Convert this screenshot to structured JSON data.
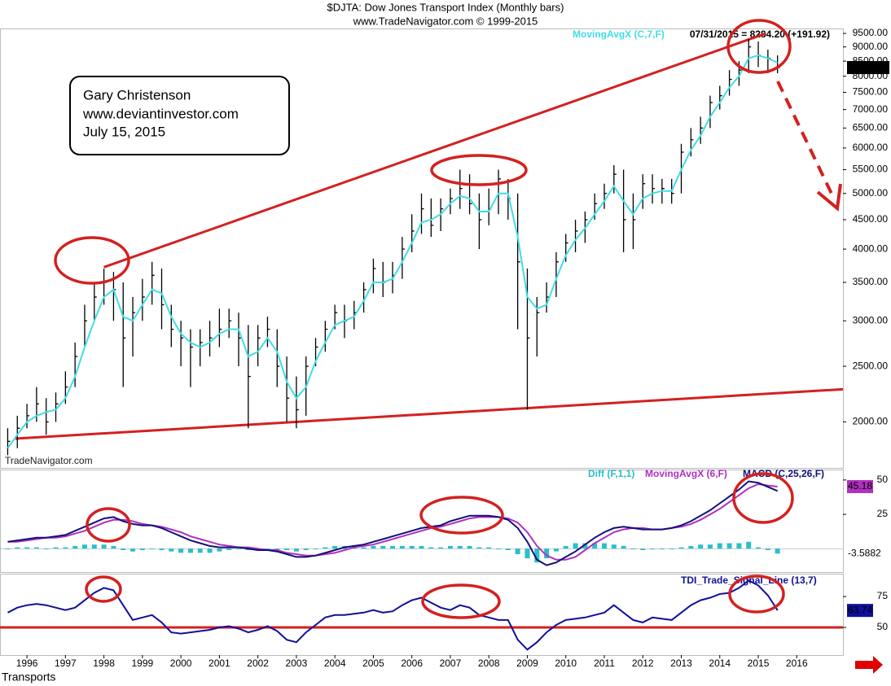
{
  "chart_data": [
    {
      "type": "ohlc",
      "title": "$DJTA:  Dow Jones Transport Index  (Monthly bars)",
      "subtitle": "www.TradeNavigator.com © 1999-2015",
      "status_text": "07/31/2015 = 8284.20 (+191.92)",
      "annotation_lines": [
        "Gary Christenson",
        "www.deviantinvestor.com",
        "July 15, 2015"
      ],
      "watermark": "TradeNavigator.com",
      "x": [
        1995.5,
        1995.75,
        1996,
        1996.25,
        1996.5,
        1996.75,
        1997,
        1997.25,
        1997.5,
        1997.75,
        1998,
        1998.25,
        1998.5,
        1998.75,
        1999,
        1999.25,
        1999.5,
        1999.75,
        2000,
        2000.25,
        2000.5,
        2000.75,
        2001,
        2001.25,
        2001.5,
        2001.75,
        2002,
        2002.25,
        2002.5,
        2002.75,
        2003,
        2003.25,
        2003.5,
        2003.75,
        2004,
        2004.25,
        2004.5,
        2004.75,
        2005,
        2005.25,
        2005.5,
        2005.75,
        2006,
        2006.25,
        2006.5,
        2006.75,
        2007,
        2007.25,
        2007.5,
        2007.75,
        2008,
        2008.25,
        2008.5,
        2008.75,
        2009,
        2009.25,
        2009.5,
        2009.75,
        2010,
        2010.25,
        2010.5,
        2010.75,
        2011,
        2011.25,
        2011.5,
        2011.75,
        2012,
        2012.25,
        2012.5,
        2012.75,
        2013,
        2013.25,
        2013.5,
        2013.75,
        2014,
        2014.25,
        2014.5,
        2014.75,
        2015,
        2015.25,
        2015.5
      ],
      "xlim": [
        1995.3,
        2017.2
      ],
      "ylim": [
        1663,
        9690
      ],
      "log_scale": true,
      "yticks": [
        {
          "value": 9500,
          "label": "9500.00"
        },
        {
          "value": 9000,
          "label": "9000.00"
        },
        {
          "value": 8500,
          "label": "8500.00"
        },
        {
          "value": 8000,
          "label": "8000.00"
        },
        {
          "value": 7500,
          "label": "7500.00"
        },
        {
          "value": 7000,
          "label": "7000.00"
        },
        {
          "value": 6500,
          "label": "6500.00"
        },
        {
          "value": 6000,
          "label": "6000.00"
        },
        {
          "value": 5500,
          "label": "5500.00"
        },
        {
          "value": 5000,
          "label": "5000.00"
        },
        {
          "value": 4500,
          "label": "4500.00"
        },
        {
          "value": 4000,
          "label": "4000.00"
        },
        {
          "value": 3500,
          "label": "3500.00"
        },
        {
          "value": 3000,
          "label": "3000.00"
        },
        {
          "value": 2500,
          "label": "2500.00"
        },
        {
          "value": 2000,
          "label": "2000.00"
        }
      ],
      "series": [
        {
          "color": "#000000",
          "last_tag_label": "8284.20",
          "high": [
            1950,
            2050,
            2150,
            2300,
            2200,
            2250,
            2450,
            2750,
            3200,
            3500,
            3700,
            3650,
            3500,
            3300,
            3550,
            3800,
            3700,
            3200,
            3000,
            2900,
            2900,
            3000,
            3150,
            3150,
            3100,
            2950,
            2950,
            3050,
            2900,
            2600,
            2400,
            2600,
            2800,
            3000,
            3200,
            3200,
            3250,
            3500,
            3850,
            3800,
            3800,
            4200,
            4600,
            5000,
            4900,
            4900,
            5100,
            5500,
            5400,
            5000,
            5100,
            5500,
            5300,
            5000,
            3700,
            3300,
            3500,
            3950,
            4250,
            4500,
            4650,
            5000,
            5200,
            5600,
            5500,
            5000,
            5400,
            5400,
            5300,
            5300,
            6100,
            6500,
            6800,
            7400,
            7700,
            8200,
            8500,
            9300,
            9200,
            8900,
            8700
          ],
          "low": [
            1750,
            1800,
            1950,
            2000,
            1900,
            2000,
            2150,
            2300,
            2700,
            3000,
            3200,
            3000,
            2300,
            2600,
            3000,
            3200,
            2900,
            2700,
            2500,
            2300,
            2500,
            2600,
            2700,
            2800,
            2500,
            1950,
            2500,
            2700,
            2300,
            2000,
            1950,
            2050,
            2500,
            2650,
            2900,
            2800,
            2900,
            3100,
            3350,
            3300,
            3350,
            3550,
            3950,
            4250,
            4200,
            4300,
            4600,
            4700,
            4600,
            4000,
            4400,
            4600,
            4500,
            2900,
            2100,
            2600,
            3100,
            3300,
            3800,
            3950,
            4100,
            4500,
            4700,
            5000,
            3950,
            4000,
            4700,
            4800,
            4800,
            4800,
            5000,
            5800,
            6100,
            6500,
            7000,
            7400,
            7700,
            8100,
            8300,
            8100,
            8100
          ],
          "close": [
            1850,
            1950,
            2050,
            2150,
            2000,
            2150,
            2300,
            2600,
            3000,
            3300,
            3500,
            3400,
            2800,
            3100,
            3300,
            3600,
            3200,
            2900,
            2800,
            2700,
            2750,
            2800,
            2900,
            3000,
            2800,
            2400,
            2800,
            2900,
            2500,
            2200,
            2100,
            2500,
            2700,
            2900,
            3100,
            3000,
            3100,
            3400,
            3700,
            3500,
            3600,
            4000,
            4300,
            4700,
            4400,
            4700,
            4900,
            5100,
            4800,
            4500,
            4700,
            5300,
            4900,
            3800,
            2800,
            3100,
            3300,
            3800,
            4100,
            4300,
            4500,
            4800,
            5000,
            5400,
            4500,
            4500,
            5200,
            5100,
            5100,
            5000,
            5900,
            6200,
            6500,
            7200,
            7400,
            7900,
            8200,
            9000,
            8700,
            8600,
            8284.2
          ]
        },
        {
          "name": "MovingAvgX (C,7,F)",
          "color": "#40dde6",
          "values": [
            1800,
            1900,
            2000,
            2050,
            2080,
            2100,
            2200,
            2400,
            2700,
            3000,
            3300,
            3400,
            3050,
            3000,
            3200,
            3400,
            3350,
            3050,
            2850,
            2750,
            2700,
            2750,
            2850,
            2900,
            2900,
            2600,
            2650,
            2800,
            2650,
            2350,
            2200,
            2300,
            2550,
            2750,
            2950,
            3000,
            3050,
            3250,
            3500,
            3500,
            3550,
            3800,
            4100,
            4450,
            4500,
            4600,
            4800,
            4950,
            4900,
            4650,
            4650,
            5000,
            5000,
            4200,
            3300,
            3150,
            3200,
            3550,
            3900,
            4150,
            4350,
            4600,
            4850,
            5150,
            4850,
            4600,
            4900,
            5000,
            5050,
            5050,
            5500,
            5950,
            6300,
            6800,
            7200,
            7650,
            8000,
            8600,
            8700,
            8600,
            8450
          ]
        }
      ],
      "trendlines": [
        {
          "x": [
            1998,
            2015.2
          ],
          "y": [
            3720,
            9500
          ]
        },
        {
          "x": [
            1995.7,
            2017.2
          ],
          "y": [
            1870,
            2280
          ]
        }
      ],
      "trendline_color": "#d42020"
    },
    {
      "type": "macd",
      "x": [
        1995.5,
        1995.75,
        1996,
        1996.25,
        1996.5,
        1996.75,
        1997,
        1997.25,
        1997.5,
        1997.75,
        1998,
        1998.25,
        1998.5,
        1998.75,
        1999,
        1999.25,
        1999.5,
        1999.75,
        2000,
        2000.25,
        2000.5,
        2000.75,
        2001,
        2001.25,
        2001.5,
        2001.75,
        2002,
        2002.25,
        2002.5,
        2002.75,
        2003,
        2003.25,
        2003.5,
        2003.75,
        2004,
        2004.25,
        2004.5,
        2004.75,
        2005,
        2005.25,
        2005.5,
        2005.75,
        2006,
        2006.25,
        2006.5,
        2006.75,
        2007,
        2007.25,
        2007.5,
        2007.75,
        2008,
        2008.25,
        2008.5,
        2008.75,
        2009,
        2009.25,
        2009.5,
        2009.75,
        2010,
        2010.25,
        2010.5,
        2010.75,
        2011,
        2011.25,
        2011.5,
        2011.75,
        2012,
        2012.25,
        2012.5,
        2012.75,
        2013,
        2013.25,
        2013.5,
        2013.75,
        2014,
        2014.25,
        2014.5,
        2014.75,
        2015,
        2015.25,
        2015.5
      ],
      "xlim": [
        1995.3,
        2017.2
      ],
      "ylim": [
        -17,
        57
      ],
      "yticks": [
        25,
        50
      ],
      "series": [
        {
          "name": "Diff (F,1,1)",
          "color": "#2bbfc8",
          "style": "histogram",
          "tag": true,
          "values": [
            0,
            1,
            1,
            1,
            0,
            1,
            1,
            2,
            3,
            3,
            3,
            2,
            -1,
            -2,
            -1,
            0,
            -1,
            -2,
            -3,
            -3,
            -3,
            -3,
            -2,
            -1,
            0,
            -1,
            -1,
            0,
            -1,
            -1,
            -2,
            -1,
            0,
            1,
            2,
            2,
            1,
            1,
            2,
            2,
            2,
            2,
            2,
            2,
            1,
            1,
            2,
            2,
            2,
            1,
            1,
            0,
            -1,
            -4,
            -7,
            -10,
            -7,
            -2,
            2,
            4,
            4,
            4,
            4,
            3,
            2,
            0,
            -1,
            0,
            0,
            0,
            1,
            2,
            3,
            3,
            4,
            4,
            4,
            5,
            1,
            -1,
            -3.5882
          ]
        },
        {
          "name": "MovingAvgX (6,F)",
          "color": "#b030c0",
          "tag": true,
          "values": [
            5,
            5,
            6,
            7,
            8,
            8,
            9,
            11,
            13,
            16,
            19,
            21,
            21,
            20,
            18,
            17,
            16,
            14,
            12,
            9,
            7,
            5,
            3,
            2,
            1,
            1,
            0,
            -1,
            -1,
            -3,
            -4,
            -5,
            -5,
            -4,
            -3,
            -1,
            1,
            2,
            3,
            5,
            7,
            9,
            11,
            13,
            15,
            16,
            18,
            20,
            22,
            23,
            23,
            23,
            22,
            19,
            12,
            2,
            -5,
            -8,
            -8,
            -6,
            -1,
            4,
            8,
            12,
            14,
            15,
            15,
            14,
            14,
            15,
            16,
            18,
            21,
            25,
            29,
            34,
            39,
            44,
            47,
            46,
            45.18
          ]
        },
        {
          "name": "MACD (C,25,26,F)",
          "color": "#10107a",
          "values": [
            5,
            6,
            7,
            8,
            8,
            9,
            10,
            13,
            16,
            19,
            22,
            23,
            20,
            18,
            17,
            17,
            15,
            12,
            9,
            6,
            4,
            2,
            1,
            1,
            1,
            0,
            -1,
            -1,
            -2,
            -4,
            -6,
            -6,
            -5,
            -3,
            -1,
            1,
            2,
            3,
            5,
            7,
            9,
            11,
            13,
            15,
            16,
            17,
            20,
            22,
            24,
            24,
            24,
            23,
            21,
            15,
            5,
            -8,
            -12,
            -10,
            -6,
            -2,
            3,
            8,
            12,
            15,
            16,
            15,
            14,
            14,
            14,
            15,
            17,
            20,
            24,
            28,
            33,
            38,
            43,
            49,
            48,
            45,
            42
          ]
        }
      ]
    },
    {
      "type": "line",
      "x": [
        1995.5,
        1995.75,
        1996,
        1996.25,
        1996.5,
        1996.75,
        1997,
        1997.25,
        1997.5,
        1997.75,
        1998,
        1998.25,
        1998.5,
        1998.75,
        1999,
        1999.25,
        1999.5,
        1999.75,
        2000,
        2000.25,
        2000.5,
        2000.75,
        2001,
        2001.25,
        2001.5,
        2001.75,
        2002,
        2002.25,
        2002.5,
        2002.75,
        2003,
        2003.25,
        2003.5,
        2003.75,
        2004,
        2004.25,
        2004.5,
        2004.75,
        2005,
        2005.25,
        2005.5,
        2005.75,
        2006,
        2006.25,
        2006.5,
        2006.75,
        2007,
        2007.25,
        2007.5,
        2007.75,
        2008,
        2008.25,
        2008.5,
        2008.75,
        2009,
        2009.25,
        2009.5,
        2009.75,
        2010,
        2010.25,
        2010.5,
        2010.75,
        2011,
        2011.25,
        2011.5,
        2011.75,
        2012,
        2012.25,
        2012.5,
        2012.75,
        2013,
        2013.25,
        2013.5,
        2013.75,
        2014,
        2014.25,
        2014.5,
        2014.75,
        2015,
        2015.25,
        2015.5
      ],
      "xlim": [
        1995.3,
        2017.2
      ],
      "ylim": [
        27.6,
        92.8
      ],
      "yticks": [
        50,
        75
      ],
      "xticks": [
        1996,
        1997,
        1998,
        1999,
        2000,
        2001,
        2002,
        2003,
        2004,
        2005,
        2006,
        2007,
        2008,
        2009,
        2010,
        2011,
        2012,
        2013,
        2014,
        2015,
        2016
      ],
      "reference_line": 50,
      "reference_color": "#d42020",
      "footer": "Transports",
      "series": [
        {
          "name": "TDI_Trade_Signal_Line (13,7)",
          "color": "#10109a",
          "tag": true,
          "values": [
            62,
            66,
            68,
            69,
            68,
            66,
            64,
            66,
            72,
            78,
            82,
            80,
            68,
            56,
            58,
            60,
            54,
            46,
            45,
            46,
            47,
            48,
            50,
            51,
            49,
            46,
            48,
            51,
            47,
            40,
            38,
            46,
            52,
            58,
            60,
            60,
            61,
            62,
            64,
            62,
            63,
            68,
            72,
            74,
            70,
            66,
            64,
            68,
            66,
            60,
            58,
            56,
            56,
            40,
            32,
            38,
            46,
            52,
            56,
            57,
            58,
            60,
            62,
            68,
            62,
            56,
            54,
            58,
            57,
            56,
            62,
            68,
            72,
            74,
            77,
            78,
            82,
            88,
            84,
            76,
            63.74
          ]
        }
      ]
    }
  ]
}
